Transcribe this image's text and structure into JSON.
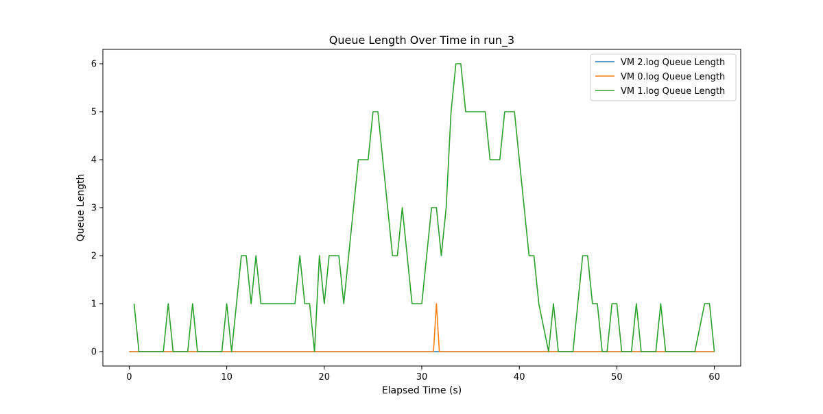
{
  "chart_data": {
    "type": "line",
    "title": "Queue Length Over Time in run_3",
    "xlabel": "Elapsed Time (s)",
    "ylabel": "Queue Length",
    "xlim": [
      -2.7,
      62.7
    ],
    "ylim": [
      -0.3,
      6.3
    ],
    "xticks": [
      0,
      10,
      20,
      30,
      40,
      50,
      60
    ],
    "yticks": [
      0,
      1,
      2,
      3,
      4,
      5,
      6
    ],
    "grid": false,
    "legend_position": "top-right",
    "series": [
      {
        "name": "VM 2.log Queue Length",
        "color": "#1f77b4",
        "x": [
          0,
          60
        ],
        "y": [
          0,
          0
        ]
      },
      {
        "name": "VM 0.log Queue Length",
        "color": "#ff7f0e",
        "x": [
          0,
          31.2,
          31.5,
          31.8,
          60
        ],
        "y": [
          0,
          0,
          1,
          0,
          0
        ]
      },
      {
        "name": "VM 1.log Queue Length",
        "color": "#2ca02c",
        "x": [
          0.5,
          1.0,
          3.5,
          4.0,
          4.5,
          6.0,
          6.5,
          7.0,
          9.5,
          10.0,
          10.5,
          11.5,
          12.0,
          12.5,
          13.0,
          13.5,
          17.0,
          17.5,
          18.0,
          18.5,
          19.0,
          19.5,
          20.0,
          20.5,
          21.5,
          22.0,
          23.5,
          24.5,
          25.0,
          25.5,
          27.0,
          27.5,
          28.0,
          29.0,
          30.0,
          31.0,
          31.5,
          32.0,
          32.5,
          33.0,
          33.5,
          34.0,
          34.5,
          36.5,
          37.0,
          38.0,
          38.5,
          39.5,
          41.0,
          41.5,
          42.0,
          43.0,
          43.5,
          44.0,
          44.5,
          45.5,
          46.5,
          47.0,
          47.5,
          48.0,
          48.5,
          49.0,
          49.5,
          50.0,
          50.5,
          51.0,
          51.5,
          52.0,
          52.5,
          54.0,
          54.5,
          55.0,
          57.5,
          58.0,
          59.0,
          59.5,
          60.0
        ],
        "y": [
          1,
          0,
          0,
          1,
          0,
          0,
          1,
          0,
          0,
          1,
          0,
          2,
          2,
          1,
          2,
          1,
          1,
          2,
          1,
          1,
          0,
          2,
          1,
          2,
          2,
          1,
          4,
          4,
          5,
          5,
          2,
          2,
          3,
          1,
          1,
          3,
          3,
          2,
          3,
          5,
          6,
          6,
          5,
          5,
          4,
          4,
          5,
          5,
          2,
          2,
          1,
          0,
          1,
          0,
          0,
          0,
          2,
          2,
          1,
          1,
          0,
          0,
          1,
          1,
          0,
          0,
          0,
          1,
          0,
          0,
          1,
          0,
          0,
          0,
          1,
          1,
          0
        ]
      }
    ]
  }
}
